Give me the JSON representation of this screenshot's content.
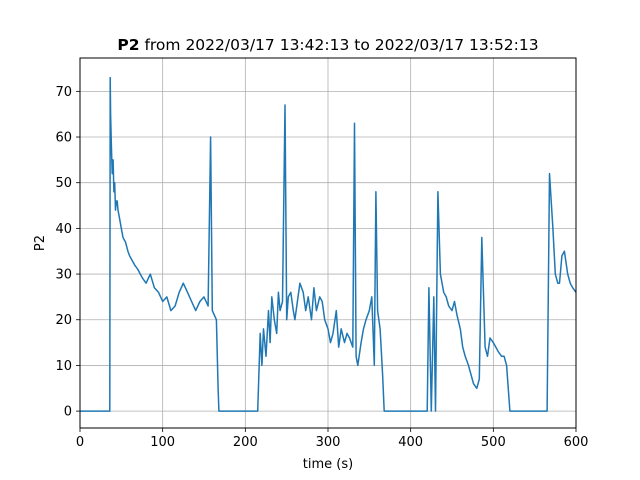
{
  "chart_data": {
    "type": "line",
    "title_bold": "P2",
    "title_rest": " from 2022/03/17 13:42:13 to 2022/03/17 13:52:13",
    "xlabel": "time (s)",
    "ylabel": "P2",
    "xlim": [
      0,
      600
    ],
    "ylim": [
      -3.7,
      77.3
    ],
    "xticks": [
      0,
      100,
      200,
      300,
      400,
      500,
      600
    ],
    "yticks": [
      0,
      10,
      20,
      30,
      40,
      50,
      60,
      70
    ],
    "grid": true,
    "line_color": "#1f77b4",
    "series": [
      {
        "x": [
          0,
          36,
          36.5,
          37,
          38,
          39,
          40,
          41,
          42,
          43,
          44,
          45,
          46,
          48,
          50,
          52,
          55,
          58,
          60,
          63,
          66,
          70,
          73,
          76,
          80,
          85,
          90,
          95,
          100,
          105,
          110,
          115,
          120,
          125,
          130,
          135,
          140,
          145,
          150,
          155,
          158,
          160,
          165,
          167,
          168,
          170,
          215,
          218,
          220,
          222,
          225,
          228,
          230,
          232,
          235,
          238,
          240,
          242,
          245,
          248,
          250,
          252,
          255,
          258,
          260,
          263,
          266,
          270,
          273,
          276,
          280,
          283,
          286,
          290,
          293,
          296,
          300,
          303,
          306,
          310,
          313,
          316,
          320,
          323,
          326,
          330,
          332,
          334,
          336,
          340,
          343,
          346,
          350,
          353,
          356,
          358,
          360,
          363,
          366,
          368,
          420,
          422,
          425,
          428,
          430,
          433,
          436,
          440,
          443,
          446,
          450,
          453,
          456,
          460,
          463,
          466,
          470,
          473,
          476,
          480,
          483,
          486,
          490,
          493,
          496,
          500,
          503,
          506,
          510,
          513,
          516,
          520,
          525,
          565,
          568,
          570,
          572,
          575,
          578,
          580,
          583,
          586,
          590,
          593,
          596,
          600
        ],
        "y": [
          0,
          0,
          73,
          65,
          58,
          52,
          55,
          48,
          50,
          44,
          46,
          46,
          44,
          42,
          40,
          38,
          37,
          35,
          34,
          33,
          32,
          31,
          30,
          29,
          28,
          30,
          27,
          26,
          24,
          25,
          22,
          23,
          26,
          28,
          26,
          24,
          22,
          24,
          25,
          23,
          60,
          22,
          20,
          5,
          0,
          0,
          0,
          17,
          10,
          18,
          12,
          22,
          15,
          25,
          20,
          17,
          26,
          22,
          24,
          67,
          20,
          25,
          26,
          22,
          20,
          24,
          28,
          26,
          22,
          25,
          20,
          27,
          22,
          25,
          24,
          20,
          18,
          15,
          17,
          22,
          14,
          18,
          15,
          17,
          16,
          14,
          63,
          12,
          10,
          15,
          18,
          20,
          22,
          25,
          10,
          48,
          22,
          18,
          8,
          0,
          0,
          27,
          0,
          25,
          0,
          48,
          30,
          26,
          25,
          23,
          22,
          24,
          21,
          18,
          14,
          12,
          10,
          8,
          6,
          5,
          7,
          38,
          14,
          12,
          16,
          15,
          14,
          13,
          12,
          12,
          10,
          0,
          0,
          0,
          52,
          46,
          40,
          30,
          28,
          28,
          34,
          35,
          30,
          28,
          27,
          26
        ]
      }
    ]
  }
}
